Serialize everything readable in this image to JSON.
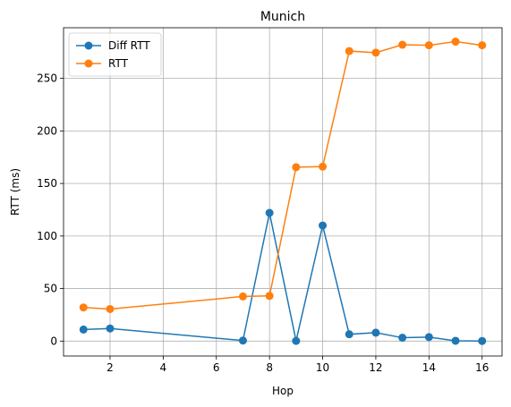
{
  "chart_data": {
    "type": "line",
    "title": "Munich",
    "xlabel": "Hop",
    "ylabel": "RTT (ms)",
    "xlim": [
      0.25,
      16.75
    ],
    "ylim": [
      -14.2,
      298.2
    ],
    "xticks": [
      2,
      4,
      6,
      8,
      10,
      12,
      14,
      16
    ],
    "yticks": [
      0,
      50,
      100,
      150,
      200,
      250
    ],
    "grid": true,
    "legend_position": "upper-left",
    "series": [
      {
        "name": "Diff RTT",
        "color": "#1f77b4",
        "x": [
          1,
          2,
          7,
          8,
          9,
          10,
          11,
          12,
          13,
          14,
          15,
          16
        ],
        "y": [
          11,
          12,
          0.5,
          122,
          0.2,
          110,
          6.5,
          8,
          3.2,
          3.8,
          0.3,
          0.1
        ]
      },
      {
        "name": "RTT",
        "color": "#ff7f0e",
        "x": [
          1,
          2,
          7,
          8,
          9,
          10,
          11,
          12,
          13,
          14,
          15,
          16
        ],
        "y": [
          32,
          30.5,
          42.5,
          43,
          165.5,
          166,
          276,
          274.5,
          282,
          281.5,
          285,
          281.5
        ]
      }
    ]
  }
}
